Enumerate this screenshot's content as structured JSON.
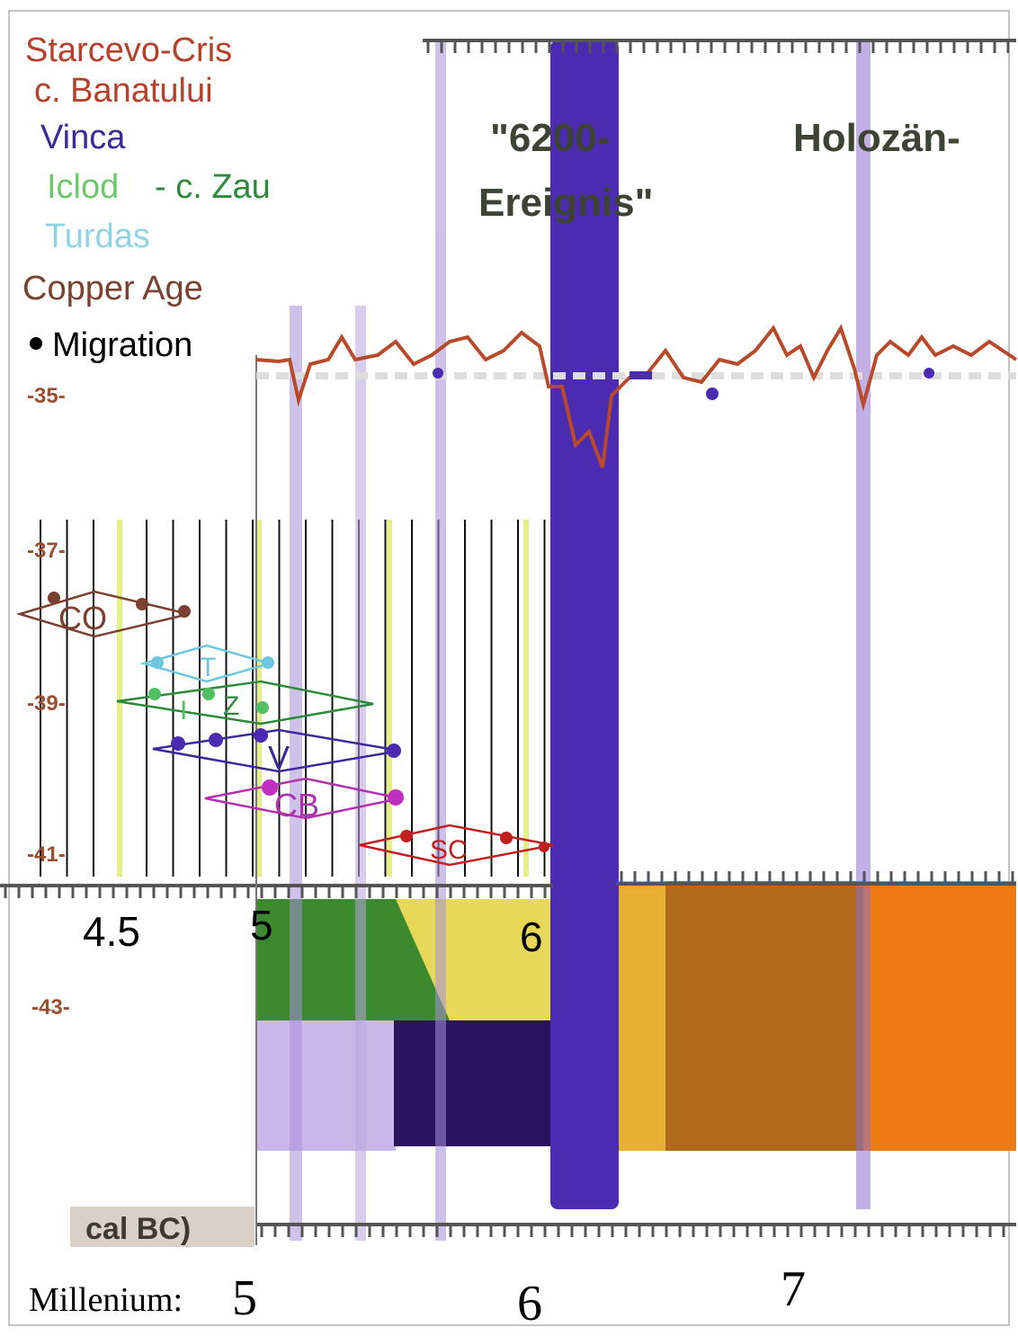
{
  "legend": [
    "Starcevo-Cris",
    "c. Banatului",
    "Vinca",
    "Iclod",
    "- c. Zau",
    "Turdas",
    "Copper Age",
    "Migration"
  ],
  "event_labels": {
    "event_6200": [
      "\"6200-",
      "Ereignis\""
    ],
    "holozaen": "Holozän-"
  },
  "y_labels": [
    "-35-",
    "-37-",
    "-39-",
    "-41-",
    "-43-"
  ],
  "top_scale": [
    "4.5",
    "5",
    "6"
  ],
  "axis_label": "cal BC)",
  "millennium": {
    "label": "Millenium:",
    "ticks": [
      "5",
      "6",
      "7"
    ]
  },
  "ranges": [
    "CO",
    "T",
    "I",
    "Z",
    "V",
    "CB",
    "SC"
  ]
}
